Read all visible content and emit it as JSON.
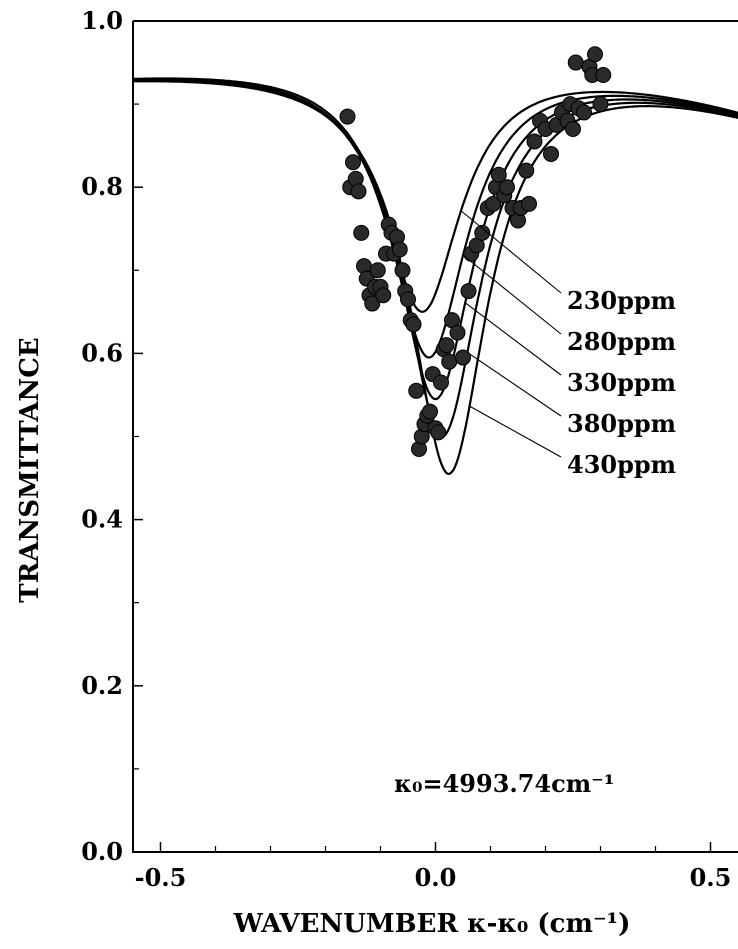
{
  "chart_data": {
    "type": "line",
    "title": "",
    "xlabel": "WAVENUMBER κ-κ₀ (cm⁻¹)",
    "ylabel": "TRANSMITTANCE",
    "xlim": [
      -0.55,
      0.55
    ],
    "ylim": [
      0.0,
      1.0
    ],
    "x_ticks": [
      -0.5,
      0.0,
      0.5
    ],
    "x_tick_labels": [
      "-0.5",
      "0.0",
      "0.5"
    ],
    "y_ticks": [
      0.0,
      0.2,
      0.4,
      0.6,
      0.8,
      1.0
    ],
    "y_tick_labels": [
      "0.0",
      "0.2",
      "0.4",
      "0.6",
      "0.8",
      "1.0"
    ],
    "grid": false,
    "annotation": "κ₀=4993.74cm⁻¹",
    "series": [
      {
        "name": "230ppm",
        "min_transmittance": 0.65
      },
      {
        "name": "280ppm",
        "min_transmittance": 0.595
      },
      {
        "name": "330ppm",
        "min_transmittance": 0.545
      },
      {
        "name": "380ppm",
        "min_transmittance": 0.5
      },
      {
        "name": "430ppm",
        "min_transmittance": 0.455
      }
    ],
    "observations": [
      {
        "x": -0.16,
        "y": 0.885
      },
      {
        "x": -0.155,
        "y": 0.8
      },
      {
        "x": -0.15,
        "y": 0.83
      },
      {
        "x": -0.145,
        "y": 0.81
      },
      {
        "x": -0.14,
        "y": 0.795
      },
      {
        "x": -0.135,
        "y": 0.745
      },
      {
        "x": -0.13,
        "y": 0.705
      },
      {
        "x": -0.125,
        "y": 0.69
      },
      {
        "x": -0.12,
        "y": 0.67
      },
      {
        "x": -0.115,
        "y": 0.66
      },
      {
        "x": -0.11,
        "y": 0.68
      },
      {
        "x": -0.105,
        "y": 0.7
      },
      {
        "x": -0.1,
        "y": 0.68
      },
      {
        "x": -0.095,
        "y": 0.67
      },
      {
        "x": -0.09,
        "y": 0.72
      },
      {
        "x": -0.085,
        "y": 0.755
      },
      {
        "x": -0.08,
        "y": 0.745
      },
      {
        "x": -0.075,
        "y": 0.72
      },
      {
        "x": -0.07,
        "y": 0.74
      },
      {
        "x": -0.065,
        "y": 0.725
      },
      {
        "x": -0.06,
        "y": 0.7
      },
      {
        "x": -0.055,
        "y": 0.675
      },
      {
        "x": -0.05,
        "y": 0.665
      },
      {
        "x": -0.045,
        "y": 0.64
      },
      {
        "x": -0.04,
        "y": 0.635
      },
      {
        "x": -0.035,
        "y": 0.555
      },
      {
        "x": -0.03,
        "y": 0.485
      },
      {
        "x": -0.025,
        "y": 0.5
      },
      {
        "x": -0.02,
        "y": 0.515
      },
      {
        "x": -0.015,
        "y": 0.525
      },
      {
        "x": -0.01,
        "y": 0.53
      },
      {
        "x": -0.005,
        "y": 0.575
      },
      {
        "x": 0.0,
        "y": 0.51
      },
      {
        "x": 0.005,
        "y": 0.505
      },
      {
        "x": 0.01,
        "y": 0.565
      },
      {
        "x": 0.015,
        "y": 0.605
      },
      {
        "x": 0.02,
        "y": 0.61
      },
      {
        "x": 0.025,
        "y": 0.59
      },
      {
        "x": 0.03,
        "y": 0.64
      },
      {
        "x": 0.04,
        "y": 0.625
      },
      {
        "x": 0.05,
        "y": 0.595
      },
      {
        "x": 0.06,
        "y": 0.675
      },
      {
        "x": 0.065,
        "y": 0.72
      },
      {
        "x": 0.075,
        "y": 0.73
      },
      {
        "x": 0.085,
        "y": 0.745
      },
      {
        "x": 0.095,
        "y": 0.775
      },
      {
        "x": 0.105,
        "y": 0.78
      },
      {
        "x": 0.11,
        "y": 0.8
      },
      {
        "x": 0.115,
        "y": 0.815
      },
      {
        "x": 0.125,
        "y": 0.79
      },
      {
        "x": 0.13,
        "y": 0.8
      },
      {
        "x": 0.14,
        "y": 0.775
      },
      {
        "x": 0.15,
        "y": 0.76
      },
      {
        "x": 0.155,
        "y": 0.775
      },
      {
        "x": 0.165,
        "y": 0.82
      },
      {
        "x": 0.17,
        "y": 0.78
      },
      {
        "x": 0.18,
        "y": 0.855
      },
      {
        "x": 0.19,
        "y": 0.88
      },
      {
        "x": 0.2,
        "y": 0.87
      },
      {
        "x": 0.21,
        "y": 0.84
      },
      {
        "x": 0.22,
        "y": 0.875
      },
      {
        "x": 0.23,
        "y": 0.89
      },
      {
        "x": 0.24,
        "y": 0.88
      },
      {
        "x": 0.245,
        "y": 0.9
      },
      {
        "x": 0.25,
        "y": 0.87
      },
      {
        "x": 0.255,
        "y": 0.95
      },
      {
        "x": 0.26,
        "y": 0.895
      },
      {
        "x": 0.27,
        "y": 0.89
      },
      {
        "x": 0.28,
        "y": 0.945
      },
      {
        "x": 0.285,
        "y": 0.935
      },
      {
        "x": 0.29,
        "y": 0.96
      },
      {
        "x": 0.3,
        "y": 0.9
      },
      {
        "x": 0.305,
        "y": 0.935
      }
    ]
  }
}
